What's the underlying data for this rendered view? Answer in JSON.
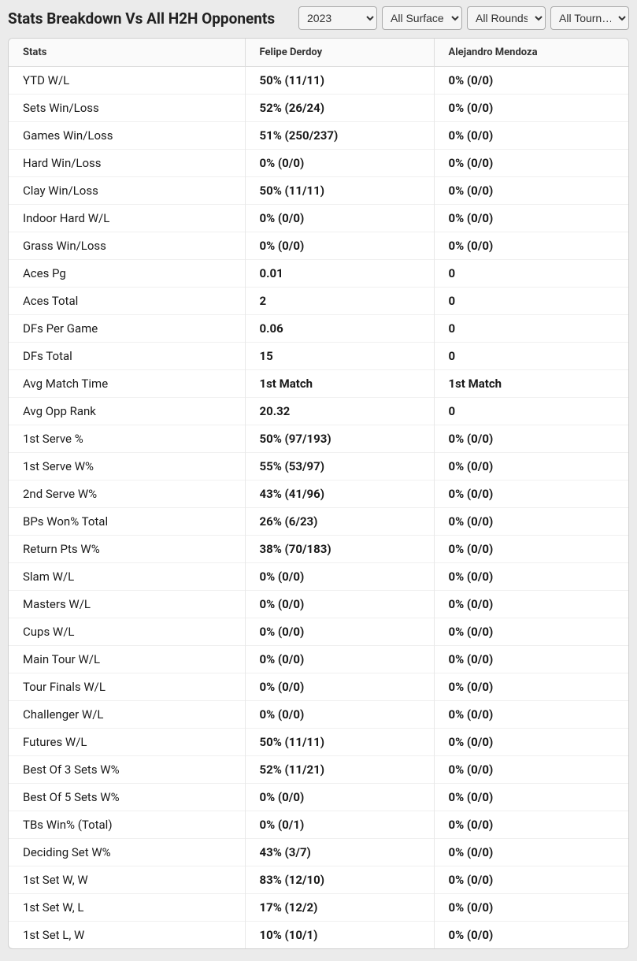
{
  "title": "Stats Breakdown Vs All H2H Opponents",
  "filters": {
    "year": {
      "selected": "2023",
      "options": [
        "2023"
      ]
    },
    "surface": {
      "selected": "All Surfaces",
      "options": [
        "All Surfaces"
      ]
    },
    "round": {
      "selected": "All Rounds",
      "options": [
        "All Rounds"
      ]
    },
    "tourn": {
      "selected": "All Tourn…",
      "options": [
        "All Tourn…"
      ]
    }
  },
  "table": {
    "columns": [
      "Stats",
      "Felipe Derdoy",
      "Alejandro Mendoza"
    ],
    "rows": [
      [
        "YTD W/L",
        "50% (11/11)",
        "0% (0/0)"
      ],
      [
        "Sets Win/Loss",
        "52% (26/24)",
        "0% (0/0)"
      ],
      [
        "Games Win/Loss",
        "51% (250/237)",
        "0% (0/0)"
      ],
      [
        "Hard Win/Loss",
        "0% (0/0)",
        "0% (0/0)"
      ],
      [
        "Clay Win/Loss",
        "50% (11/11)",
        "0% (0/0)"
      ],
      [
        "Indoor Hard W/L",
        "0% (0/0)",
        "0% (0/0)"
      ],
      [
        "Grass Win/Loss",
        "0% (0/0)",
        "0% (0/0)"
      ],
      [
        "Aces Pg",
        "0.01",
        "0"
      ],
      [
        "Aces Total",
        "2",
        "0"
      ],
      [
        "DFs Per Game",
        "0.06",
        "0"
      ],
      [
        "DFs Total",
        "15",
        "0"
      ],
      [
        "Avg Match Time",
        "1st Match",
        "1st Match"
      ],
      [
        "Avg Opp Rank",
        "20.32",
        "0"
      ],
      [
        "1st Serve %",
        "50% (97/193)",
        "0% (0/0)"
      ],
      [
        "1st Serve W%",
        "55% (53/97)",
        "0% (0/0)"
      ],
      [
        "2nd Serve W%",
        "43% (41/96)",
        "0% (0/0)"
      ],
      [
        "BPs Won% Total",
        "26% (6/23)",
        "0% (0/0)"
      ],
      [
        "Return Pts W%",
        "38% (70/183)",
        "0% (0/0)"
      ],
      [
        "Slam W/L",
        "0% (0/0)",
        "0% (0/0)"
      ],
      [
        "Masters W/L",
        "0% (0/0)",
        "0% (0/0)"
      ],
      [
        "Cups W/L",
        "0% (0/0)",
        "0% (0/0)"
      ],
      [
        "Main Tour W/L",
        "0% (0/0)",
        "0% (0/0)"
      ],
      [
        "Tour Finals W/L",
        "0% (0/0)",
        "0% (0/0)"
      ],
      [
        "Challenger W/L",
        "0% (0/0)",
        "0% (0/0)"
      ],
      [
        "Futures W/L",
        "50% (11/11)",
        "0% (0/0)"
      ],
      [
        "Best Of 3 Sets W%",
        "52% (11/21)",
        "0% (0/0)"
      ],
      [
        "Best Of 5 Sets W%",
        "0% (0/0)",
        "0% (0/0)"
      ],
      [
        "TBs Win% (Total)",
        "0% (0/1)",
        "0% (0/0)"
      ],
      [
        "Deciding Set W%",
        "43% (3/7)",
        "0% (0/0)"
      ],
      [
        "1st Set W, W",
        "83% (12/10)",
        "0% (0/0)"
      ],
      [
        "1st Set W, L",
        "17% (12/2)",
        "0% (0/0)"
      ],
      [
        "1st Set L, W",
        "10% (10/1)",
        "0% (0/0)"
      ]
    ]
  }
}
